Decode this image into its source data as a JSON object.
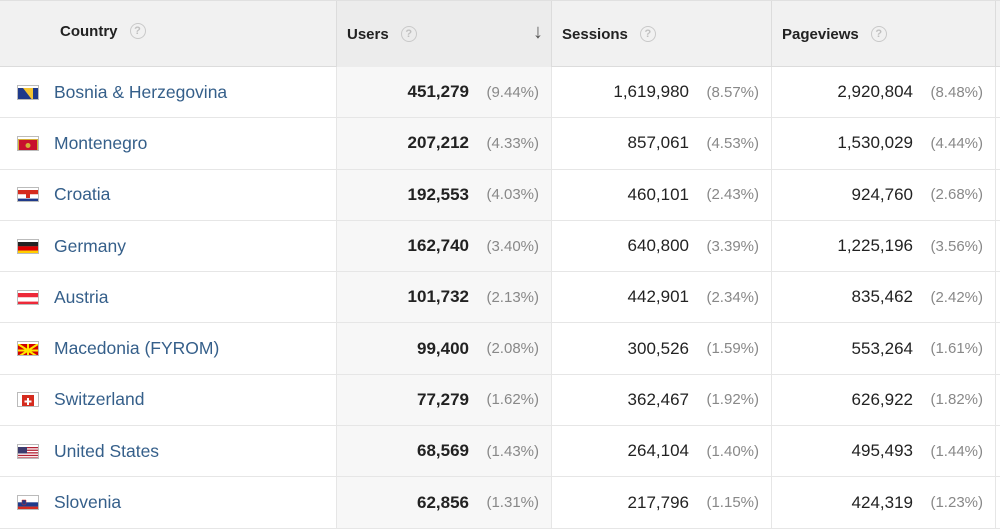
{
  "headers": {
    "country": "Country",
    "users": "Users",
    "sessions": "Sessions",
    "pageviews": "Pageviews",
    "help_glyph": "?",
    "sort_glyph": "↓"
  },
  "rows": [
    {
      "country": "Bosnia & Herzegovina",
      "flag": "bosnia-flag-icon",
      "users": "451,279",
      "users_pct": "(9.44%)",
      "sessions": "1,619,980",
      "sessions_pct": "(8.57%)",
      "pageviews": "2,920,804",
      "pageviews_pct": "(8.48%)"
    },
    {
      "country": "Montenegro",
      "flag": "montenegro-flag-icon",
      "users": "207,212",
      "users_pct": "(4.33%)",
      "sessions": "857,061",
      "sessions_pct": "(4.53%)",
      "pageviews": "1,530,029",
      "pageviews_pct": "(4.44%)"
    },
    {
      "country": "Croatia",
      "flag": "croatia-flag-icon",
      "users": "192,553",
      "users_pct": "(4.03%)",
      "sessions": "460,101",
      "sessions_pct": "(2.43%)",
      "pageviews": "924,760",
      "pageviews_pct": "(2.68%)"
    },
    {
      "country": "Germany",
      "flag": "germany-flag-icon",
      "users": "162,740",
      "users_pct": "(3.40%)",
      "sessions": "640,800",
      "sessions_pct": "(3.39%)",
      "pageviews": "1,225,196",
      "pageviews_pct": "(3.56%)"
    },
    {
      "country": "Austria",
      "flag": "austria-flag-icon",
      "users": "101,732",
      "users_pct": "(2.13%)",
      "sessions": "442,901",
      "sessions_pct": "(2.34%)",
      "pageviews": "835,462",
      "pageviews_pct": "(2.42%)"
    },
    {
      "country": "Macedonia (FYROM)",
      "flag": "macedonia-flag-icon",
      "users": "99,400",
      "users_pct": "(2.08%)",
      "sessions": "300,526",
      "sessions_pct": "(1.59%)",
      "pageviews": "553,264",
      "pageviews_pct": "(1.61%)"
    },
    {
      "country": "Switzerland",
      "flag": "switzerland-flag-icon",
      "users": "77,279",
      "users_pct": "(1.62%)",
      "sessions": "362,467",
      "sessions_pct": "(1.92%)",
      "pageviews": "626,922",
      "pageviews_pct": "(1.82%)"
    },
    {
      "country": "United States",
      "flag": "usa-flag-icon",
      "users": "68,569",
      "users_pct": "(1.43%)",
      "sessions": "264,104",
      "sessions_pct": "(1.40%)",
      "pageviews": "495,493",
      "pageviews_pct": "(1.44%)"
    },
    {
      "country": "Slovenia",
      "flag": "slovenia-flag-icon",
      "users": "62,856",
      "users_pct": "(1.31%)",
      "sessions": "217,796",
      "sessions_pct": "(1.15%)",
      "pageviews": "424,319",
      "pageviews_pct": "(1.23%)"
    }
  ],
  "colors": {
    "link": "#355f8a",
    "header_bg": "#f1f1f1",
    "sorted_column_bg": "#f7f7f7",
    "percent": "#888888"
  }
}
